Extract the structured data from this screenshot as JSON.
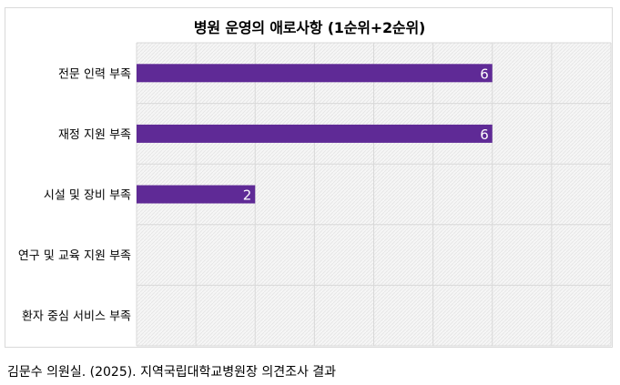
{
  "chart_data": {
    "type": "bar",
    "orientation": "horizontal",
    "title": "병원 운영의 애로사항 (1순위+2순위)",
    "categories": [
      "전문 인력 부족",
      "재정 지원 부족",
      "시설 및 장비 부족",
      "연구 및 교육 지원 부족",
      "환자 중심 서비스 부족"
    ],
    "values": [
      6,
      6,
      2,
      0,
      0
    ],
    "data_labels": [
      "6",
      "6",
      "2",
      "",
      ""
    ],
    "xlim": [
      0,
      8
    ],
    "grid": true,
    "legend": "none",
    "bar_color": "#5f2a96",
    "grid_color": "#d9d9d9",
    "plot_background": "#f3f3f3"
  },
  "source": "김문수 의원실. (2025). 지역국립대학교병원장 의견조사 결과"
}
